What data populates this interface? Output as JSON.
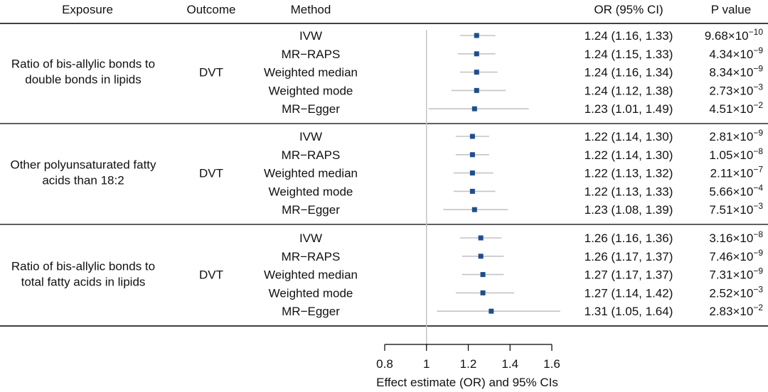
{
  "chart_data": {
    "type": "forest",
    "columns": {
      "exposure": "Exposure",
      "outcome": "Outcome",
      "method": "Method",
      "or_ci": "OR (95% CI)",
      "p": "P value"
    },
    "xlabel": "Effect estimate (OR) and 95% CIs",
    "xlim": [
      0.8,
      1.6
    ],
    "xticks": [
      0.8,
      1,
      1.2,
      1.4,
      1.6
    ],
    "xtick_labels": [
      "0.8",
      "1",
      "1.2",
      "1.4",
      "1.6"
    ],
    "reference_line": 1,
    "colors": {
      "point": "#1f4e8c",
      "ci": "#c4c4c4",
      "ref": "#c4c4c4",
      "rule": "#000000"
    },
    "groups": [
      {
        "exposure": [
          "Ratio of bis-allylic bonds to",
          "double bonds in lipids"
        ],
        "outcome": "DVT",
        "rows": [
          {
            "method": "IVW",
            "or": 1.24,
            "lo": 1.16,
            "hi": 1.33,
            "or_ci_text": "1.24 (1.16, 1.33)",
            "p_mant": "9.68×10",
            "p_exp": "−10"
          },
          {
            "method": "MR−RAPS",
            "or": 1.24,
            "lo": 1.15,
            "hi": 1.33,
            "or_ci_text": "1.24 (1.15, 1.33)",
            "p_mant": "4.34×10",
            "p_exp": "−9"
          },
          {
            "method": "Weighted median",
            "or": 1.24,
            "lo": 1.16,
            "hi": 1.34,
            "or_ci_text": "1.24 (1.16, 1.34)",
            "p_mant": "8.34×10",
            "p_exp": "−9"
          },
          {
            "method": "Weighted mode",
            "or": 1.24,
            "lo": 1.12,
            "hi": 1.38,
            "or_ci_text": "1.24 (1.12, 1.38)",
            "p_mant": "2.73×10",
            "p_exp": "−3"
          },
          {
            "method": "MR−Egger",
            "or": 1.23,
            "lo": 1.01,
            "hi": 1.49,
            "or_ci_text": "1.23 (1.01, 1.49)",
            "p_mant": "4.51×10",
            "p_exp": "−2"
          }
        ]
      },
      {
        "exposure": [
          "Other polyunsaturated fatty",
          "acids than 18:2"
        ],
        "outcome": "DVT",
        "rows": [
          {
            "method": "IVW",
            "or": 1.22,
            "lo": 1.14,
            "hi": 1.3,
            "or_ci_text": "1.22 (1.14, 1.30)",
            "p_mant": "2.81×10",
            "p_exp": "−9"
          },
          {
            "method": "MR−RAPS",
            "or": 1.22,
            "lo": 1.14,
            "hi": 1.3,
            "or_ci_text": "1.22 (1.14, 1.30)",
            "p_mant": "1.05×10",
            "p_exp": "−8"
          },
          {
            "method": "Weighted median",
            "or": 1.22,
            "lo": 1.13,
            "hi": 1.32,
            "or_ci_text": "1.22 (1.13, 1.32)",
            "p_mant": "2.11×10",
            "p_exp": "−7"
          },
          {
            "method": "Weighted mode",
            "or": 1.22,
            "lo": 1.13,
            "hi": 1.33,
            "or_ci_text": "1.22 (1.13, 1.33)",
            "p_mant": "5.66×10",
            "p_exp": "−4"
          },
          {
            "method": "MR−Egger",
            "or": 1.23,
            "lo": 1.08,
            "hi": 1.39,
            "or_ci_text": "1.23 (1.08, 1.39)",
            "p_mant": "7.51×10",
            "p_exp": "−3"
          }
        ]
      },
      {
        "exposure": [
          "Ratio of bis-allylic bonds to",
          "total fatty acids in lipids"
        ],
        "outcome": "DVT",
        "rows": [
          {
            "method": "IVW",
            "or": 1.26,
            "lo": 1.16,
            "hi": 1.36,
            "or_ci_text": "1.26 (1.16, 1.36)",
            "p_mant": "3.16×10",
            "p_exp": "−8"
          },
          {
            "method": "MR−RAPS",
            "or": 1.26,
            "lo": 1.17,
            "hi": 1.37,
            "or_ci_text": "1.26 (1.17, 1.37)",
            "p_mant": "7.46×10",
            "p_exp": "−9"
          },
          {
            "method": "Weighted median",
            "or": 1.27,
            "lo": 1.17,
            "hi": 1.37,
            "or_ci_text": "1.27 (1.17, 1.37)",
            "p_mant": "7.31×10",
            "p_exp": "−9"
          },
          {
            "method": "Weighted mode",
            "or": 1.27,
            "lo": 1.14,
            "hi": 1.42,
            "or_ci_text": "1.27 (1.14, 1.42)",
            "p_mant": "2.52×10",
            "p_exp": "−3"
          },
          {
            "method": "MR−Egger",
            "or": 1.31,
            "lo": 1.05,
            "hi": 1.64,
            "or_ci_text": "1.31 (1.05, 1.64)",
            "p_mant": "2.83×10",
            "p_exp": "−2"
          }
        ]
      }
    ]
  }
}
